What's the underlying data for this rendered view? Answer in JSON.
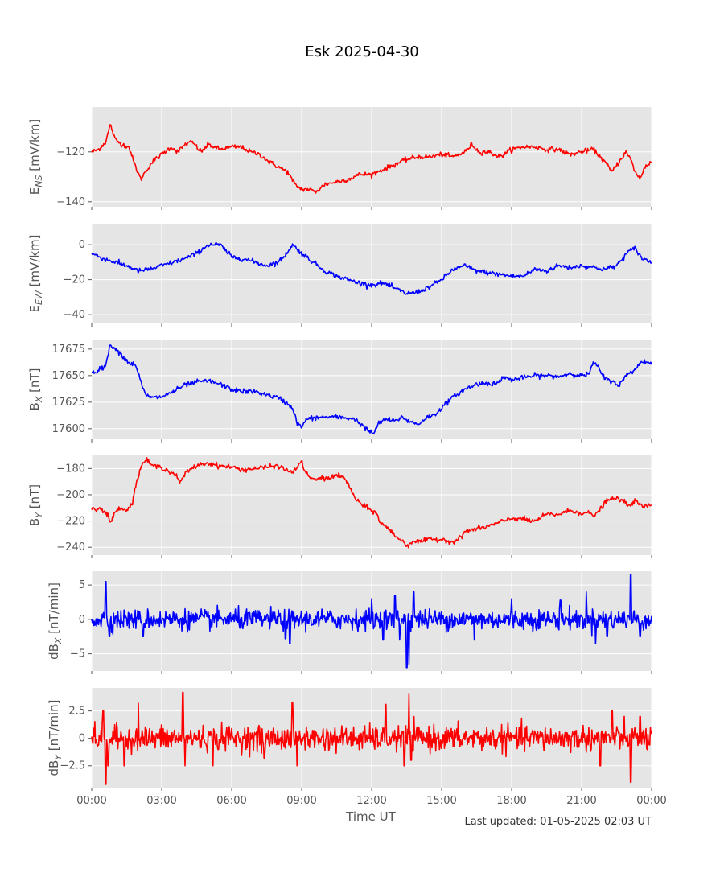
{
  "chart_data": {
    "type": "line",
    "title": "Esk 2025-04-30",
    "xlabel": "Time UT",
    "footer": "Last updated: 01-05-2025 02:03 UT",
    "x_ticks": [
      "00:00",
      "03:00",
      "06:00",
      "09:00",
      "12:00",
      "15:00",
      "18:00",
      "21:00",
      "00:00"
    ],
    "x_range_hours": [
      0,
      24
    ],
    "grid": true,
    "background": "#e5e5e5",
    "panels": [
      {
        "ylabel": {
          "base": "E",
          "sub": "NS",
          "unit": " [mV/km]"
        },
        "color": "#ff0000",
        "ylim": [
          -142,
          -102
        ],
        "yticks": [
          -120,
          -140
        ],
        "points": [
          [
            0,
            -120
          ],
          [
            0.3,
            -119
          ],
          [
            0.6,
            -116
          ],
          [
            0.8,
            -109
          ],
          [
            1.0,
            -115
          ],
          [
            1.3,
            -117
          ],
          [
            1.6,
            -118
          ],
          [
            1.8,
            -124
          ],
          [
            2.1,
            -131
          ],
          [
            2.3,
            -128
          ],
          [
            2.6,
            -124
          ],
          [
            3.0,
            -121
          ],
          [
            3.4,
            -118
          ],
          [
            3.7,
            -120
          ],
          [
            4.0,
            -117
          ],
          [
            4.3,
            -116
          ],
          [
            4.7,
            -120
          ],
          [
            5.0,
            -117
          ],
          [
            5.5,
            -119
          ],
          [
            6.0,
            -118
          ],
          [
            6.4,
            -118
          ],
          [
            6.8,
            -120
          ],
          [
            7.2,
            -121
          ],
          [
            7.6,
            -124
          ],
          [
            8.0,
            -126
          ],
          [
            8.4,
            -128
          ],
          [
            8.7,
            -133
          ],
          [
            9.0,
            -135
          ],
          [
            9.3,
            -135
          ],
          [
            9.6,
            -136
          ],
          [
            10.0,
            -133
          ],
          [
            10.5,
            -132
          ],
          [
            11.0,
            -131
          ],
          [
            11.5,
            -129
          ],
          [
            12.0,
            -129
          ],
          [
            12.5,
            -127
          ],
          [
            13.0,
            -125
          ],
          [
            13.5,
            -123
          ],
          [
            14.0,
            -122
          ],
          [
            14.5,
            -122
          ],
          [
            15.0,
            -121
          ],
          [
            15.5,
            -122
          ],
          [
            16.0,
            -120
          ],
          [
            16.3,
            -117
          ],
          [
            16.6,
            -120
          ],
          [
            17.0,
            -120
          ],
          [
            17.5,
            -122
          ],
          [
            18.0,
            -119
          ],
          [
            18.5,
            -118
          ],
          [
            19.0,
            -118
          ],
          [
            19.5,
            -119
          ],
          [
            20.0,
            -119
          ],
          [
            20.5,
            -121
          ],
          [
            21.0,
            -120
          ],
          [
            21.5,
            -119
          ],
          [
            22.0,
            -124
          ],
          [
            22.3,
            -128
          ],
          [
            22.6,
            -124
          ],
          [
            22.9,
            -120
          ],
          [
            23.1,
            -123
          ],
          [
            23.3,
            -128
          ],
          [
            23.5,
            -131
          ],
          [
            23.7,
            -126
          ],
          [
            24.0,
            -124
          ]
        ]
      },
      {
        "ylabel": {
          "base": "E",
          "sub": "EW",
          "unit": " [mV/km]"
        },
        "color": "#0000ff",
        "ylim": [
          -45,
          12
        ],
        "yticks": [
          0,
          -20,
          -40
        ],
        "points": [
          [
            0,
            -5
          ],
          [
            0.5,
            -8
          ],
          [
            1.0,
            -10
          ],
          [
            1.5,
            -12
          ],
          [
            2.0,
            -15
          ],
          [
            2.5,
            -14
          ],
          [
            3.0,
            -12
          ],
          [
            3.5,
            -10
          ],
          [
            4.0,
            -8
          ],
          [
            4.5,
            -5
          ],
          [
            5.0,
            0
          ],
          [
            5.5,
            0
          ],
          [
            6.0,
            -7
          ],
          [
            6.5,
            -8
          ],
          [
            7.0,
            -10
          ],
          [
            7.5,
            -12
          ],
          [
            8.0,
            -10
          ],
          [
            8.3,
            -6
          ],
          [
            8.6,
            0
          ],
          [
            9.0,
            -5
          ],
          [
            9.5,
            -10
          ],
          [
            10.0,
            -15
          ],
          [
            10.5,
            -18
          ],
          [
            11.0,
            -20
          ],
          [
            11.5,
            -22
          ],
          [
            12.0,
            -23
          ],
          [
            12.5,
            -22
          ],
          [
            13.0,
            -25
          ],
          [
            13.5,
            -28
          ],
          [
            14.0,
            -27
          ],
          [
            14.5,
            -24
          ],
          [
            15.0,
            -20
          ],
          [
            15.5,
            -14
          ],
          [
            16.0,
            -12
          ],
          [
            16.5,
            -15
          ],
          [
            17.0,
            -16
          ],
          [
            17.5,
            -17
          ],
          [
            18.0,
            -18
          ],
          [
            18.5,
            -18
          ],
          [
            19.0,
            -14
          ],
          [
            19.5,
            -15
          ],
          [
            20.0,
            -12
          ],
          [
            20.5,
            -13
          ],
          [
            21.0,
            -12
          ],
          [
            21.5,
            -13
          ],
          [
            22.0,
            -14
          ],
          [
            22.5,
            -12
          ],
          [
            23.0,
            -4
          ],
          [
            23.3,
            -2
          ],
          [
            23.6,
            -8
          ],
          [
            24.0,
            -10
          ]
        ]
      },
      {
        "ylabel": {
          "base": "B",
          "sub": "X",
          "unit": " [nT]"
        },
        "color": "#0000ff",
        "ylim": [
          17590,
          17684
        ],
        "yticks": [
          17675,
          17650,
          17625,
          17600
        ],
        "points": [
          [
            0,
            17653
          ],
          [
            0.3,
            17655
          ],
          [
            0.6,
            17660
          ],
          [
            0.8,
            17679
          ],
          [
            1.0,
            17676
          ],
          [
            1.3,
            17669
          ],
          [
            1.6,
            17662
          ],
          [
            1.9,
            17660
          ],
          [
            2.1,
            17644
          ],
          [
            2.3,
            17632
          ],
          [
            2.6,
            17629
          ],
          [
            3.0,
            17630
          ],
          [
            3.5,
            17635
          ],
          [
            4.0,
            17641
          ],
          [
            4.5,
            17644
          ],
          [
            5.0,
            17645
          ],
          [
            5.5,
            17642
          ],
          [
            6.0,
            17637
          ],
          [
            6.5,
            17635
          ],
          [
            7.0,
            17635
          ],
          [
            7.5,
            17632
          ],
          [
            8.0,
            17629
          ],
          [
            8.3,
            17625
          ],
          [
            8.6,
            17620
          ],
          [
            8.8,
            17606
          ],
          [
            9.0,
            17601
          ],
          [
            9.2,
            17609
          ],
          [
            9.5,
            17610
          ],
          [
            10.0,
            17611
          ],
          [
            10.5,
            17611
          ],
          [
            11.0,
            17610
          ],
          [
            11.3,
            17609
          ],
          [
            11.6,
            17603
          ],
          [
            11.9,
            17597
          ],
          [
            12.1,
            17596
          ],
          [
            12.3,
            17605
          ],
          [
            12.6,
            17609
          ],
          [
            13.0,
            17607
          ],
          [
            13.3,
            17611
          ],
          [
            13.6,
            17607
          ],
          [
            14.0,
            17604
          ],
          [
            14.3,
            17610
          ],
          [
            14.7,
            17613
          ],
          [
            15.0,
            17620
          ],
          [
            15.5,
            17630
          ],
          [
            16.0,
            17637
          ],
          [
            16.5,
            17642
          ],
          [
            17.0,
            17643
          ],
          [
            17.4,
            17642
          ],
          [
            17.6,
            17649
          ],
          [
            18.0,
            17646
          ],
          [
            18.5,
            17648
          ],
          [
            19.0,
            17650
          ],
          [
            19.5,
            17650
          ],
          [
            20.0,
            17649
          ],
          [
            20.5,
            17652
          ],
          [
            21.0,
            17650
          ],
          [
            21.3,
            17651
          ],
          [
            21.5,
            17662
          ],
          [
            21.7,
            17658
          ],
          [
            22.0,
            17647
          ],
          [
            22.3,
            17645
          ],
          [
            22.6,
            17641
          ],
          [
            23.0,
            17652
          ],
          [
            23.3,
            17656
          ],
          [
            23.6,
            17664
          ],
          [
            24.0,
            17661
          ]
        ]
      },
      {
        "ylabel": {
          "base": "B",
          "sub": "Y",
          "unit": " [nT]"
        },
        "color": "#ff0000",
        "ylim": [
          -246,
          -170
        ],
        "yticks": [
          -180,
          -200,
          -220,
          -240
        ],
        "points": [
          [
            0,
            -210
          ],
          [
            0.4,
            -211
          ],
          [
            0.7,
            -216
          ],
          [
            0.8,
            -221
          ],
          [
            1.0,
            -214
          ],
          [
            1.2,
            -209
          ],
          [
            1.5,
            -212
          ],
          [
            1.7,
            -208
          ],
          [
            2.0,
            -185
          ],
          [
            2.2,
            -175
          ],
          [
            2.4,
            -174
          ],
          [
            2.6,
            -178
          ],
          [
            3.0,
            -179
          ],
          [
            3.3,
            -182
          ],
          [
            3.6,
            -185
          ],
          [
            3.8,
            -191
          ],
          [
            4.0,
            -184
          ],
          [
            4.3,
            -180
          ],
          [
            4.6,
            -177
          ],
          [
            5.0,
            -176
          ],
          [
            5.5,
            -178
          ],
          [
            6.0,
            -179
          ],
          [
            6.5,
            -181
          ],
          [
            7.0,
            -180
          ],
          [
            7.5,
            -179
          ],
          [
            8.0,
            -178
          ],
          [
            8.3,
            -181
          ],
          [
            8.6,
            -183
          ],
          [
            9.0,
            -175
          ],
          [
            9.2,
            -184
          ],
          [
            9.5,
            -189
          ],
          [
            9.8,
            -187
          ],
          [
            10.0,
            -188
          ],
          [
            10.5,
            -185
          ],
          [
            10.8,
            -187
          ],
          [
            11.0,
            -192
          ],
          [
            11.3,
            -203
          ],
          [
            11.6,
            -208
          ],
          [
            12.0,
            -212
          ],
          [
            12.2,
            -214
          ],
          [
            12.4,
            -222
          ],
          [
            12.6,
            -224
          ],
          [
            13.0,
            -231
          ],
          [
            13.3,
            -235
          ],
          [
            13.5,
            -239
          ],
          [
            13.8,
            -235
          ],
          [
            14.0,
            -236
          ],
          [
            14.5,
            -234
          ],
          [
            15.0,
            -234
          ],
          [
            15.5,
            -236
          ],
          [
            15.8,
            -233
          ],
          [
            16.0,
            -228
          ],
          [
            16.5,
            -226
          ],
          [
            17.0,
            -224
          ],
          [
            17.5,
            -221
          ],
          [
            18.0,
            -218
          ],
          [
            18.4,
            -218
          ],
          [
            18.8,
            -220
          ],
          [
            19.0,
            -220
          ],
          [
            19.5,
            -215
          ],
          [
            20.0,
            -215
          ],
          [
            20.5,
            -212
          ],
          [
            21.0,
            -214
          ],
          [
            21.3,
            -214
          ],
          [
            21.6,
            -216
          ],
          [
            22.0,
            -206
          ],
          [
            22.3,
            -203
          ],
          [
            22.6,
            -203
          ],
          [
            23.0,
            -208
          ],
          [
            23.3,
            -205
          ],
          [
            23.6,
            -209
          ],
          [
            24.0,
            -208
          ]
        ]
      },
      {
        "ylabel": {
          "base": "dB",
          "sub": "X",
          "unit": " [nT/min]"
        },
        "color": "#0000ff",
        "ylim": [
          -7.5,
          7
        ],
        "yticks": [
          5,
          0,
          -5
        ],
        "noise_std": 0.9,
        "spikes": [
          [
            0.6,
            5.5
          ],
          [
            0.75,
            -2.5
          ],
          [
            2.2,
            -2.5
          ],
          [
            8.3,
            -2.8
          ],
          [
            8.5,
            -3.5
          ],
          [
            12.0,
            3.0
          ],
          [
            12.5,
            -3.0
          ],
          [
            13.0,
            3.5
          ],
          [
            13.2,
            -3.0
          ],
          [
            13.5,
            -7.0
          ],
          [
            13.6,
            -6.5
          ],
          [
            13.8,
            4.0
          ],
          [
            16.4,
            -3.0
          ],
          [
            18.0,
            3.0
          ],
          [
            20.1,
            2.8
          ],
          [
            21.2,
            4.0
          ],
          [
            21.6,
            -3.5
          ],
          [
            22.1,
            -2.5
          ],
          [
            23.1,
            6.5
          ],
          [
            23.5,
            -2.5
          ]
        ]
      },
      {
        "ylabel": {
          "base": "dB",
          "sub": "Y",
          "unit": " [nT/min]"
        },
        "color": "#ff0000",
        "ylim": [
          -4.5,
          4.6
        ],
        "yticks": [
          2.5,
          0.0,
          -2.5
        ],
        "noise_std": 0.7,
        "spikes": [
          [
            0.5,
            2.5
          ],
          [
            0.6,
            -4.2
          ],
          [
            0.7,
            -2.5
          ],
          [
            1.4,
            -2.5
          ],
          [
            2.0,
            3.2
          ],
          [
            3.9,
            4.2
          ],
          [
            4.0,
            -2.5
          ],
          [
            5.2,
            -2.5
          ],
          [
            7.4,
            -1.8
          ],
          [
            8.6,
            3.3
          ],
          [
            8.8,
            -2.5
          ],
          [
            12.6,
            3.1
          ],
          [
            13.4,
            -2.5
          ],
          [
            13.6,
            4.1
          ],
          [
            13.7,
            -2.0
          ],
          [
            21.8,
            -2.5
          ],
          [
            22.3,
            2.5
          ],
          [
            23.1,
            -4.0
          ],
          [
            23.5,
            2.0
          ]
        ]
      }
    ]
  }
}
